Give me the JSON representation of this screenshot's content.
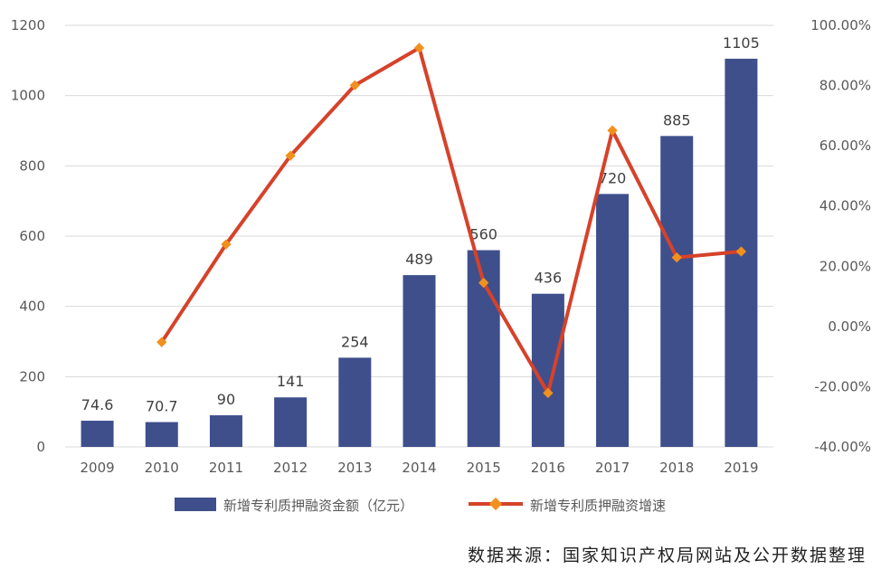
{
  "colors": {
    "bar": "#3f4f8c",
    "line": "#d6422a",
    "marker": "#f2901e",
    "grid": "#d9d9d9",
    "text": "#595959"
  },
  "chart_data": {
    "type": "bar",
    "categories": [
      "2009",
      "2010",
      "2011",
      "2012",
      "2013",
      "2014",
      "2015",
      "2016",
      "2017",
      "2018",
      "2019"
    ],
    "series": [
      {
        "name": "新增专利质押融资金额（亿元）",
        "type": "bar",
        "axis": "left",
        "values": [
          74.6,
          70.7,
          90,
          141,
          254,
          489,
          560,
          436,
          720,
          885,
          1105
        ],
        "labels": [
          "74.6",
          "70.7",
          "90",
          "141",
          "254",
          "489",
          "560",
          "436",
          "720",
          "885",
          "1105"
        ]
      },
      {
        "name": "新增专利质押融资增速",
        "type": "line",
        "axis": "right",
        "values": [
          null,
          -5.2,
          27.3,
          56.7,
          80.1,
          92.5,
          14.5,
          -22.1,
          65.1,
          22.9,
          24.9
        ]
      }
    ],
    "y_left": {
      "min": 0,
      "max": 1200,
      "ticks": [
        "0",
        "200",
        "400",
        "600",
        "800",
        "1000",
        "1200"
      ]
    },
    "y_right": {
      "min": -40,
      "max": 100,
      "ticks": [
        "-40.00%",
        "-20.00%",
        "0.00%",
        "20.00%",
        "40.00%",
        "60.00%",
        "80.00%",
        "100.00%"
      ]
    },
    "grid": true,
    "legend_position": "bottom"
  },
  "source_note": "数据来源：国家知识产权局网站及公开数据整理"
}
